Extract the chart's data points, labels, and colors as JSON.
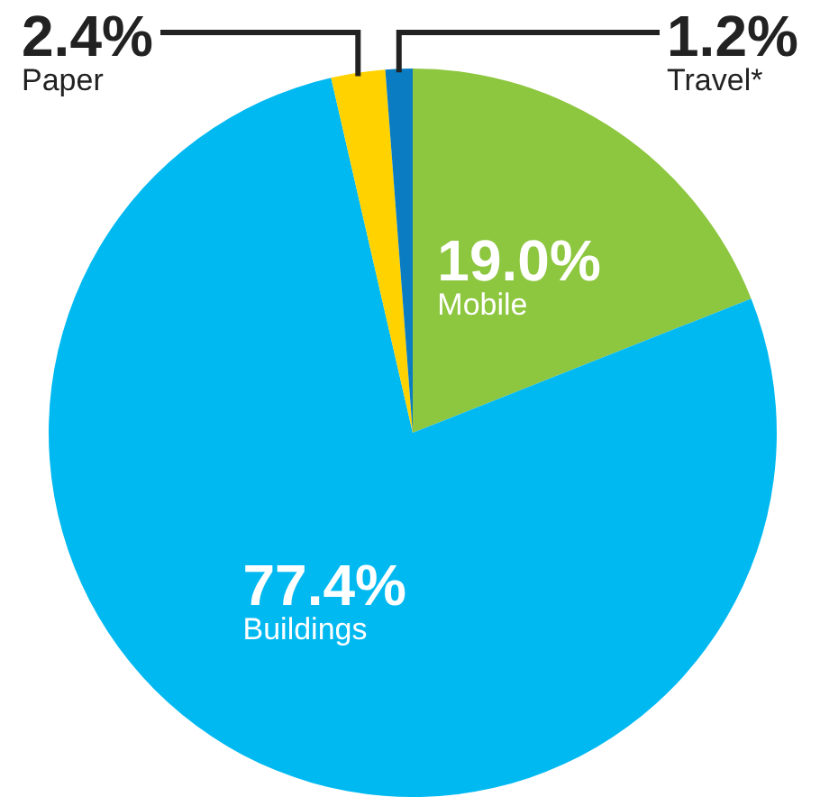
{
  "chart_data": {
    "type": "pie",
    "categories": [
      "Mobile",
      "Buildings",
      "Paper",
      "Travel*"
    ],
    "values": [
      19.0,
      77.4,
      2.4,
      1.2
    ],
    "value_labels": [
      "19.0%",
      "77.4%",
      "2.4%",
      "1.2%"
    ],
    "colors": [
      "#8dc63f",
      "#00b9f1",
      "#ffd200",
      "#0a7cc1"
    ]
  }
}
